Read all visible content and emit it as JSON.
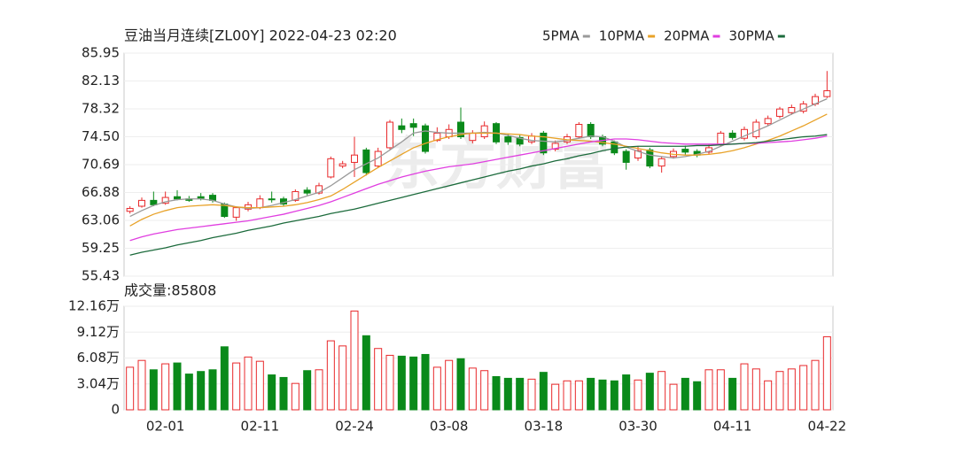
{
  "chart_data": [
    {
      "type": "candlestick",
      "title": "豆油当月连续[ZL00Y] 2022-04-23 02:20",
      "watermark": "东方财富",
      "up_color": "#e8292b",
      "down_color": "#0a8a1a",
      "open": [
        64.3,
        65.0,
        65.8,
        65.4,
        66.3,
        66.0,
        66.3,
        66.5,
        65.3,
        63.5,
        64.6,
        64.8,
        66.0,
        66.0,
        65.8,
        67.2,
        66.8,
        69.0,
        70.5,
        71.0,
        72.7,
        70.5,
        73.0,
        76.0,
        76.3,
        76.0,
        74.0,
        74.5,
        76.5,
        74.0,
        74.5,
        76.3,
        74.5,
        74.4,
        73.8,
        75.0,
        72.8,
        73.8,
        74.5,
        76.2,
        74.5,
        73.8,
        72.5,
        71.6,
        72.7,
        70.5,
        71.8,
        72.8,
        72.5,
        72.4,
        73.5,
        75.0,
        74.3,
        74.5,
        76.3,
        77.3,
        77.8,
        78.0,
        79.0,
        80.0
      ],
      "high": [
        65.0,
        66.2,
        67.0,
        67.0,
        67.2,
        66.4,
        66.8,
        66.8,
        65.5,
        65.0,
        65.6,
        66.5,
        67.0,
        66.3,
        67.3,
        67.6,
        68.2,
        71.8,
        71.2,
        74.5,
        73.0,
        73.0,
        76.8,
        77.0,
        77.0,
        76.3,
        75.8,
        76.2,
        78.5,
        75.4,
        76.6,
        76.5,
        74.9,
        74.8,
        75.0,
        75.3,
        74.0,
        74.9,
        76.5,
        76.5,
        74.8,
        74.0,
        72.8,
        73.2,
        73.0,
        71.8,
        72.9,
        73.3,
        72.8,
        73.4,
        75.3,
        75.4,
        75.9,
        76.9,
        77.4,
        78.6,
        78.9,
        79.4,
        80.4,
        83.5
      ],
      "low": [
        64.0,
        64.8,
        65.0,
        65.2,
        65.8,
        65.6,
        65.8,
        65.5,
        63.4,
        63.0,
        64.3,
        64.6,
        65.5,
        65.0,
        65.6,
        66.5,
        66.6,
        68.8,
        70.2,
        69.0,
        69.2,
        70.2,
        72.8,
        75.0,
        74.6,
        72.2,
        73.8,
        74.2,
        74.2,
        73.6,
        74.2,
        73.5,
        73.4,
        73.2,
        73.5,
        72.0,
        72.5,
        73.5,
        74.3,
        74.2,
        73.2,
        72.0,
        70.0,
        71.2,
        70.2,
        69.6,
        71.5,
        72.0,
        71.7,
        72.1,
        73.2,
        74.1,
        74.0,
        74.2,
        76.0,
        77.0,
        77.5,
        77.7,
        78.7,
        79.8
      ],
      "close": [
        64.7,
        65.8,
        65.2,
        66.2,
        66.0,
        65.8,
        66.1,
        65.8,
        63.6,
        64.8,
        65.2,
        66.0,
        65.9,
        65.3,
        67.0,
        66.8,
        67.8,
        71.5,
        70.8,
        72.0,
        69.6,
        72.5,
        76.5,
        75.5,
        75.8,
        72.5,
        75.0,
        75.5,
        74.5,
        75.0,
        76.0,
        73.8,
        73.8,
        73.5,
        74.6,
        72.3,
        73.6,
        74.5,
        76.2,
        74.5,
        73.5,
        72.3,
        71.0,
        72.6,
        70.5,
        71.5,
        72.5,
        72.4,
        72.0,
        73.0,
        75.0,
        74.4,
        75.5,
        76.5,
        77.0,
        78.3,
        78.5,
        79.0,
        80.0,
        80.8
      ],
      "series": [
        {
          "name": "5PMA",
          "color": "#9a9a9a",
          "values": [
            63.6,
            64.4,
            65.1,
            65.6,
            65.9,
            66.0,
            66.0,
            65.8,
            65.3,
            64.9,
            64.7,
            64.8,
            65.1,
            65.5,
            65.9,
            66.4,
            66.9,
            67.8,
            68.9,
            70.0,
            70.8,
            71.6,
            72.7,
            73.8,
            75.0,
            75.3,
            75.1,
            75.0,
            75.0,
            75.0,
            75.1,
            75.0,
            74.7,
            74.3,
            74.0,
            73.9,
            73.8,
            74.0,
            74.3,
            74.6,
            74.5,
            73.9,
            73.1,
            72.5,
            72.0,
            71.8,
            71.6,
            71.8,
            72.1,
            72.5,
            73.2,
            73.9,
            74.6,
            75.3,
            76.0,
            76.8,
            77.6,
            78.3,
            79.0,
            79.7
          ]
        },
        {
          "name": "10PMA",
          "color": "#e8a228",
          "values": [
            62.3,
            63.2,
            63.9,
            64.4,
            64.8,
            65.0,
            65.1,
            65.2,
            65.1,
            64.9,
            64.8,
            64.8,
            64.9,
            65.0,
            65.2,
            65.5,
            65.9,
            66.4,
            67.3,
            68.3,
            69.3,
            70.3,
            71.2,
            72.1,
            73.0,
            73.6,
            74.1,
            74.5,
            74.8,
            75.0,
            75.0,
            75.0,
            74.9,
            74.8,
            74.6,
            74.5,
            74.3,
            74.1,
            74.0,
            73.9,
            73.7,
            73.5,
            73.2,
            72.9,
            72.6,
            72.3,
            72.1,
            72.0,
            72.0,
            72.1,
            72.3,
            72.6,
            73.0,
            73.5,
            74.0,
            74.6,
            75.3,
            76.0,
            76.8,
            77.6
          ]
        },
        {
          "name": "20PMA",
          "color": "#e03ee0",
          "values": [
            60.3,
            60.8,
            61.2,
            61.5,
            61.8,
            62.0,
            62.2,
            62.4,
            62.6,
            62.8,
            63.0,
            63.3,
            63.6,
            63.9,
            64.3,
            64.7,
            65.1,
            65.6,
            66.2,
            66.8,
            67.4,
            68.0,
            68.5,
            69.0,
            69.4,
            69.8,
            70.1,
            70.4,
            70.6,
            70.8,
            71.1,
            71.4,
            71.7,
            72.0,
            72.3,
            72.6,
            72.9,
            73.2,
            73.5,
            73.8,
            74.0,
            74.2,
            74.2,
            74.1,
            73.9,
            73.7,
            73.6,
            73.5,
            73.5,
            73.5,
            73.5,
            73.5,
            73.6,
            73.6,
            73.7,
            73.8,
            73.9,
            74.1,
            74.3,
            74.6
          ]
        },
        {
          "name": "30PMA",
          "color": "#1c6b3c",
          "values": [
            58.3,
            58.7,
            59.0,
            59.3,
            59.7,
            60.0,
            60.3,
            60.7,
            61.0,
            61.3,
            61.7,
            62.0,
            62.3,
            62.7,
            63.0,
            63.3,
            63.6,
            64.0,
            64.3,
            64.6,
            65.0,
            65.4,
            65.8,
            66.2,
            66.6,
            67.0,
            67.4,
            67.8,
            68.2,
            68.6,
            69.0,
            69.4,
            69.8,
            70.1,
            70.5,
            70.8,
            71.2,
            71.5,
            71.9,
            72.2,
            72.6,
            72.9,
            73.1,
            73.2,
            73.2,
            73.2,
            73.2,
            73.2,
            73.3,
            73.3,
            73.4,
            73.5,
            73.6,
            73.7,
            73.9,
            74.1,
            74.3,
            74.5,
            74.6,
            74.8
          ]
        }
      ],
      "ylim": [
        55.43,
        85.95
      ],
      "yticks": [
        85.95,
        82.13,
        78.32,
        {
          "value": 74.5,
          "label": "74.50"
        },
        70.69,
        66.88,
        63.06,
        59.25,
        55.43
      ],
      "grid": true
    },
    {
      "type": "bar",
      "title": "成交量:85808",
      "categories": [
        null,
        null,
        null,
        "02-01",
        null,
        null,
        null,
        null,
        null,
        null,
        null,
        "02-11",
        null,
        null,
        null,
        null,
        null,
        null,
        null,
        "02-24",
        null,
        null,
        null,
        null,
        null,
        null,
        null,
        "03-08",
        null,
        null,
        null,
        null,
        null,
        null,
        null,
        "03-18",
        null,
        null,
        null,
        null,
        null,
        null,
        null,
        "03-30",
        null,
        null,
        null,
        null,
        null,
        null,
        null,
        "04-11",
        null,
        null,
        null,
        null,
        null,
        null,
        null,
        "04-22"
      ],
      "values": [
        5.0,
        5.8,
        4.7,
        5.4,
        5.5,
        4.2,
        4.5,
        4.7,
        7.4,
        5.5,
        6.2,
        5.7,
        4.1,
        3.8,
        3.1,
        4.6,
        4.7,
        8.1,
        7.5,
        11.6,
        8.7,
        7.2,
        6.4,
        6.3,
        6.2,
        6.5,
        5.0,
        5.8,
        6.0,
        4.9,
        4.6,
        3.9,
        3.7,
        3.7,
        3.6,
        4.4,
        3.0,
        3.4,
        3.4,
        3.7,
        3.5,
        3.4,
        4.1,
        3.5,
        4.3,
        4.5,
        3.0,
        3.7,
        3.3,
        4.7,
        4.7,
        3.7,
        5.4,
        4.8,
        3.4,
        4.5,
        4.8,
        5.2,
        5.8,
        8.58
      ],
      "ylim": [
        0,
        12.16
      ],
      "yticks": [
        {
          "value": 12.16,
          "label": "12.16万"
        },
        {
          "value": 9.12,
          "label": "9.12万"
        },
        {
          "value": 6.08,
          "label": "6.08万"
        },
        {
          "value": 3.04,
          "label": "3.04万"
        },
        0
      ],
      "grid": true
    }
  ]
}
